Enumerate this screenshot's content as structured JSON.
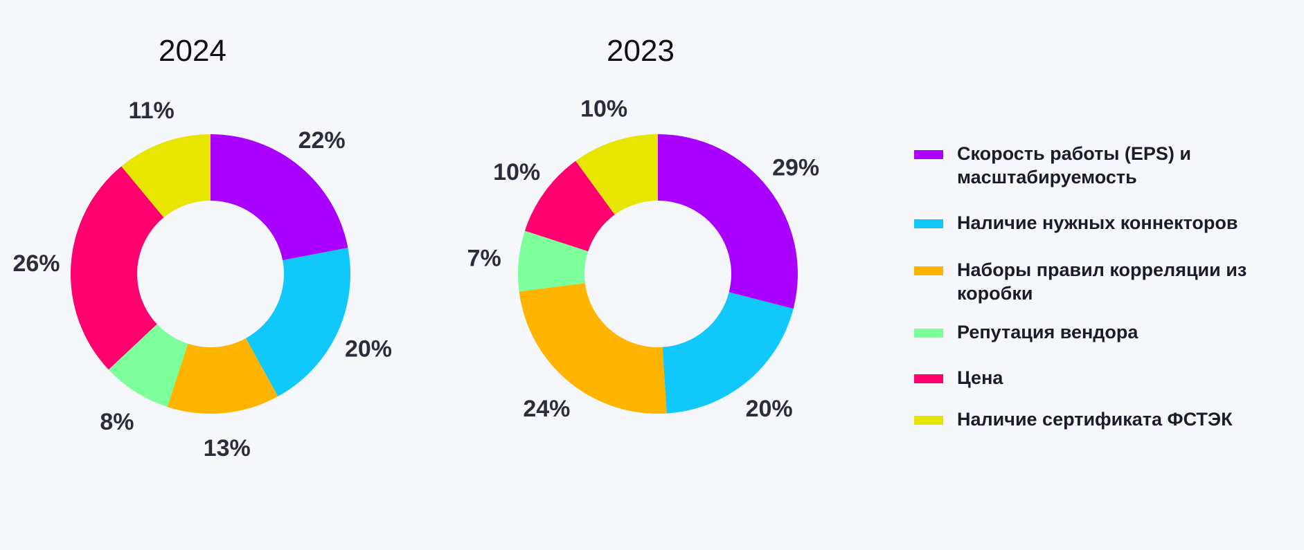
{
  "chart_data": [
    {
      "type": "pie",
      "title": "2024",
      "categories": [
        "Скорость работы (EPS) и масштабируемость",
        "Наличие нужных коннекторов",
        "Наборы правил корреляции из коробки",
        "Репутация вендора",
        "Цена",
        "Наличие сертификата ФСТЭК"
      ],
      "values": [
        22,
        20,
        13,
        8,
        26,
        11
      ],
      "labels": [
        "22%",
        "20%",
        "13%",
        "8%",
        "26%",
        "11%"
      ]
    },
    {
      "type": "pie",
      "title": "2023",
      "categories": [
        "Скорость работы (EPS) и масштабируемость",
        "Наличие нужных коннекторов",
        "Наборы правил корреляции из коробки",
        "Репутация вендора",
        "Цена",
        "Наличие сертификата ФСТЭК"
      ],
      "values": [
        29,
        20,
        24,
        7,
        10,
        10
      ],
      "labels": [
        "29%",
        "20%",
        "24%",
        "7%",
        "10%",
        "10%"
      ]
    }
  ],
  "legend": {
    "items": [
      {
        "label": "Скорость работы (EPS) и масштабируемость",
        "color": "#aa00ff"
      },
      {
        "label": "Наличие нужных коннекторов",
        "color": "#10c8fa"
      },
      {
        "label": "Наборы правил корреляции из коробки",
        "color": "#ffb400"
      },
      {
        "label": "Репутация вендора",
        "color": "#7dff9b"
      },
      {
        "label": "Цена",
        "color": "#ff006e"
      },
      {
        "label": "Наличие сертификата ФСТЭК",
        "color": "#e8e500"
      }
    ]
  }
}
